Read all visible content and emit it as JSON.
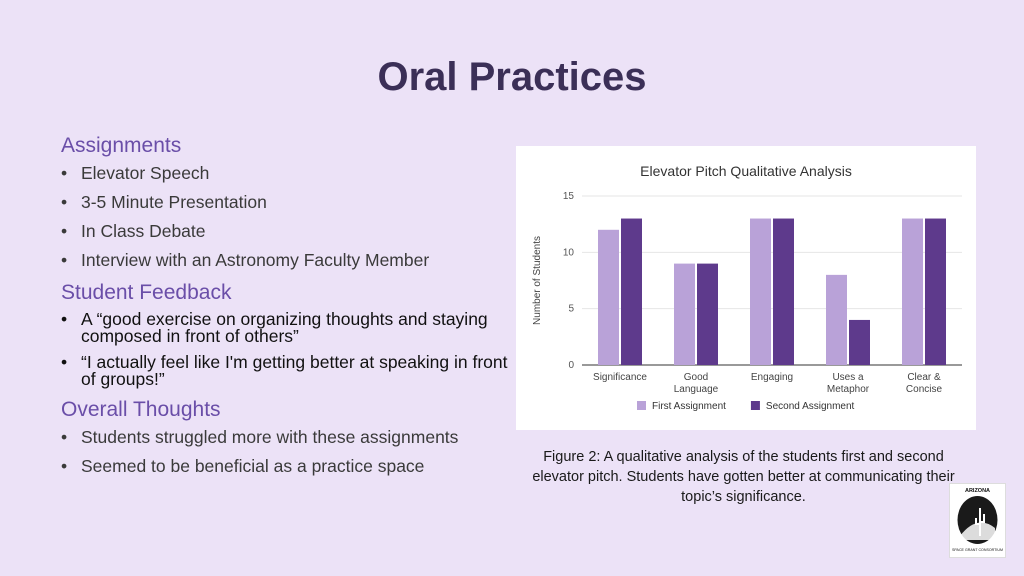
{
  "title": "Oral Practices",
  "sections": {
    "assignments": {
      "heading": "Assignments",
      "items": [
        "Elevator Speech",
        "3-5 Minute Presentation",
        "In Class Debate",
        "Interview with an Astronomy Faculty Member"
      ]
    },
    "feedback": {
      "heading": "Student Feedback",
      "items": [
        "A “good exercise on organizing thoughts and staying composed in front of others”",
        "“I actually feel like I'm getting better at speaking in front of groups!”"
      ]
    },
    "thoughts": {
      "heading": "Overall Thoughts",
      "items": [
        "Students struggled more with these assignments",
        "Seemed to be beneficial as a practice space"
      ]
    }
  },
  "bullet": "•",
  "caption": "Figure 2: A qualitative analysis of the students first and second elevator pitch. Students have gotten better at communicating their topic’s significance.",
  "logo": {
    "text_top": "ARIZONA",
    "text_bottom": "SPACE GRANT CONSORTIUM"
  },
  "colors": {
    "first": "#b9a2d8",
    "second": "#5e3a8c",
    "grid": "#e6e6e6"
  },
  "chart_data": {
    "type": "bar",
    "title": "Elevator Pitch Qualitative Analysis",
    "ylabel": "Number of Students",
    "xlabel": "",
    "ylim": [
      0,
      15
    ],
    "yticks": [
      0,
      5,
      10,
      15
    ],
    "categories": [
      [
        "Significance"
      ],
      [
        "Good",
        "Language"
      ],
      [
        "Engaging"
      ],
      [
        "Uses a",
        "Metaphor"
      ],
      [
        "Clear &",
        "Concise"
      ]
    ],
    "series": [
      {
        "name": "First Assignment",
        "values": [
          12,
          9,
          13,
          8,
          13
        ]
      },
      {
        "name": "Second Assignment",
        "values": [
          13,
          9,
          13,
          4,
          13
        ]
      }
    ],
    "legend": "bottom",
    "grid": true
  }
}
